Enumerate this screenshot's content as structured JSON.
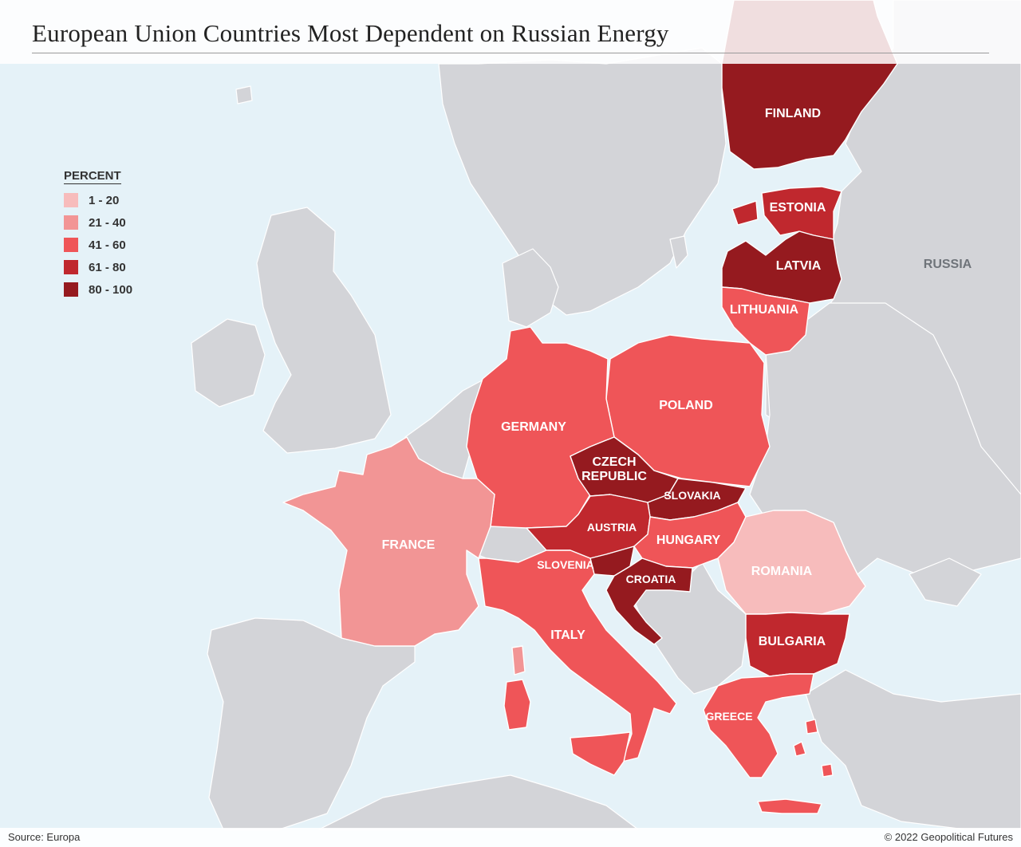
{
  "title": "European Union Countries Most Dependent on Russian Energy",
  "legend": {
    "title": "PERCENT",
    "bins": [
      {
        "label": "1 - 20",
        "color": "#f7bcbc"
      },
      {
        "label": "21 - 40",
        "color": "#f29595"
      },
      {
        "label": "41 - 60",
        "color": "#ef5558"
      },
      {
        "label": "61 - 80",
        "color": "#c0282e"
      },
      {
        "label": "80 - 100",
        "color": "#951a1f"
      }
    ]
  },
  "map_data": {
    "colors": {
      "sea": "#e5f2f8",
      "non_eu_land": "#d3d4d8",
      "border": "#ffffff"
    },
    "countries": [
      {
        "key": "finland",
        "label": "FINLAND",
        "bin": "80 - 100"
      },
      {
        "key": "estonia",
        "label": "ESTONIA",
        "bin": "61 - 80"
      },
      {
        "key": "latvia",
        "label": "LATVIA",
        "bin": "80 - 100"
      },
      {
        "key": "lithuania",
        "label": "LITHUANIA",
        "bin": "41 - 60"
      },
      {
        "key": "poland",
        "label": "POLAND",
        "bin": "41 - 60"
      },
      {
        "key": "germany",
        "label": "GERMANY",
        "bin": "41 - 60"
      },
      {
        "key": "czech_republic",
        "label_lines": [
          "CZECH",
          "REPUBLIC"
        ],
        "bin": "80 - 100"
      },
      {
        "key": "slovakia",
        "label": "SLOVAKIA",
        "bin": "80 - 100"
      },
      {
        "key": "austria",
        "label": "AUSTRIA",
        "bin": "61 - 80"
      },
      {
        "key": "hungary",
        "label": "HUNGARY",
        "bin": "41 - 60"
      },
      {
        "key": "slovenia",
        "label": "SLOVENIA",
        "bin": "80 - 100"
      },
      {
        "key": "croatia",
        "label": "CROATIA",
        "bin": "80 - 100"
      },
      {
        "key": "romania",
        "label": "ROMANIA",
        "bin": "1 - 20"
      },
      {
        "key": "bulgaria",
        "label": "BULGARIA",
        "bin": "61 - 80"
      },
      {
        "key": "greece",
        "label": "GREECE",
        "bin": "41 - 60"
      },
      {
        "key": "italy",
        "label": "ITALY",
        "bin": "41 - 60"
      },
      {
        "key": "france",
        "label": "FRANCE",
        "bin": "21 - 40"
      }
    ],
    "other_labels": [
      {
        "key": "russia",
        "label": "RUSSIA"
      }
    ]
  },
  "footer": {
    "source": "Source: Europa",
    "copyright": "© 2022 Geopolitical Futures"
  }
}
